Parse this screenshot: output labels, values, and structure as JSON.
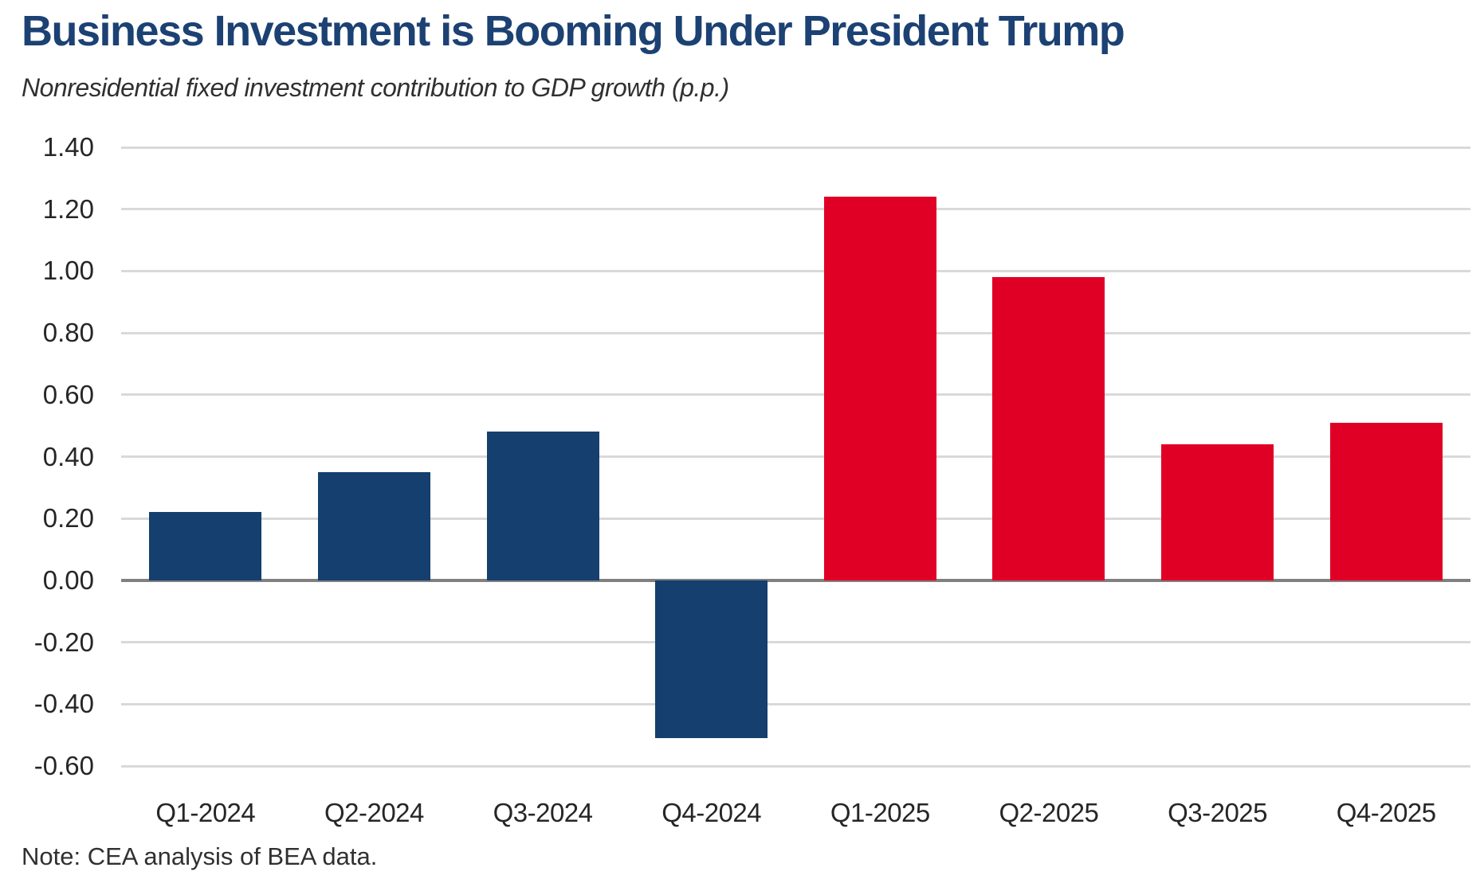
{
  "chart_data": {
    "type": "bar",
    "title": "Business Investment is Booming Under President Trump",
    "subtitle": "Nonresidential fixed investment contribution to GDP growth (p.p.)",
    "note": "Note: CEA analysis of BEA data.",
    "categories": [
      "Q1-2024",
      "Q2-2024",
      "Q3-2024",
      "Q4-2024",
      "Q1-2025",
      "Q2-2025",
      "Q3-2025",
      "Q4-2025"
    ],
    "values": [
      0.22,
      0.35,
      0.48,
      -0.51,
      1.24,
      0.98,
      0.44,
      0.51
    ],
    "bar_colors": [
      "#143F6E",
      "#143F6E",
      "#143F6E",
      "#143F6E",
      "#E00025",
      "#E00025",
      "#E00025",
      "#E00025"
    ],
    "xlabel": "",
    "ylabel": "",
    "ylim": [
      -0.6,
      1.4
    ],
    "ytick_step": 0.2,
    "ytick_labels": [
      "1.40",
      "1.20",
      "1.00",
      "0.80",
      "0.60",
      "0.40",
      "0.20",
      "0.00",
      "-0.20",
      "-0.40",
      "-0.60"
    ],
    "grid": true,
    "legend_position": "none",
    "colors": {
      "navy_2024": "#143F6E",
      "red_2025": "#E00025",
      "title": "#1C4173",
      "text": "#303030",
      "tick_text": "#262626",
      "gridline": "#D9D9D9",
      "zero_line": "#808080",
      "background": "#FFFFFF"
    }
  }
}
